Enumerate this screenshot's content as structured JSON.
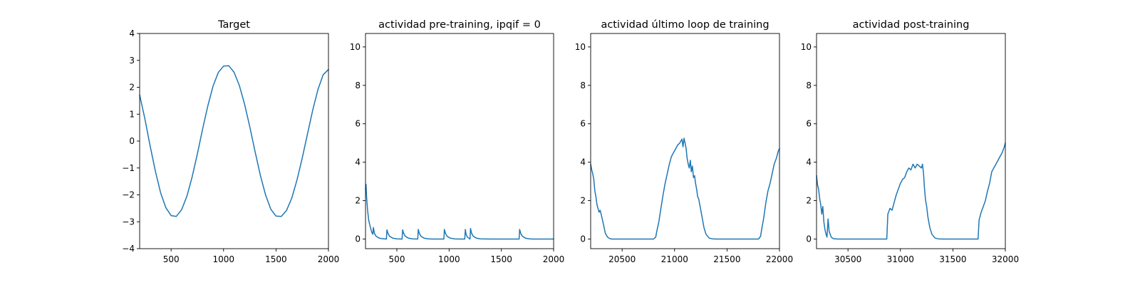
{
  "chart_data": [
    {
      "type": "line",
      "title": "Target",
      "xlim": [
        200,
        2000
      ],
      "ylim": [
        -4,
        4
      ],
      "xticks": [
        500,
        1000,
        1500,
        2000
      ],
      "yticks": [
        -4,
        -3,
        -2,
        -1,
        0,
        1,
        2,
        3,
        4
      ],
      "ytick_labels": [
        "−4",
        "−3",
        "−2",
        "−1",
        "0",
        "1",
        "2",
        "3",
        "4"
      ],
      "series": [
        {
          "x": [
            200,
            250,
            300,
            350,
            400,
            450,
            500,
            550,
            600,
            650,
            700,
            750,
            800,
            850,
            900,
            950,
            1000,
            1050,
            1100,
            1150,
            1200,
            1250,
            1300,
            1350,
            1400,
            1450,
            1500,
            1550,
            1600,
            1650,
            1700,
            1750,
            1800,
            1850,
            1900,
            1950,
            2000
          ],
          "y": [
            1.72,
            0.82,
            -0.18,
            -1.12,
            -1.92,
            -2.48,
            -2.77,
            -2.8,
            -2.55,
            -2.05,
            -1.34,
            -0.48,
            0.44,
            1.31,
            2.05,
            2.55,
            2.79,
            2.8,
            2.56,
            2.07,
            1.38,
            0.53,
            -0.38,
            -1.26,
            -2.0,
            -2.53,
            -2.79,
            -2.8,
            -2.58,
            -2.12,
            -1.45,
            -0.63,
            0.27,
            1.15,
            1.92,
            2.47,
            2.66
          ]
        }
      ]
    },
    {
      "type": "line",
      "title": "actividad pre-training, ipqif = 0",
      "xlim": [
        200,
        2000
      ],
      "ylim": [
        -0.5,
        10.7
      ],
      "xticks": [
        500,
        1000,
        1500,
        2000
      ],
      "yticks": [
        0,
        2,
        4,
        6,
        8,
        10
      ],
      "ytick_labels": [
        "0",
        "2",
        "4",
        "6",
        "8",
        "10"
      ],
      "series": [
        {
          "x": [
            200,
            205,
            210,
            220,
            230,
            240,
            250,
            260,
            270,
            275,
            285,
            300,
            330,
            360,
            400,
            405,
            415,
            430,
            460,
            500,
            550,
            555,
            565,
            580,
            610,
            650,
            700,
            705,
            715,
            730,
            760,
            800,
            850,
            900,
            950,
            955,
            965,
            980,
            1010,
            1050,
            1100,
            1150,
            1155,
            1162,
            1175,
            1200,
            1205,
            1215,
            1230,
            1260,
            1300,
            1400,
            1500,
            1600,
            1670,
            1675,
            1685,
            1700,
            1730,
            1770,
            1800,
            1900,
            2000
          ],
          "y": [
            2.6,
            2.85,
            2.2,
            1.5,
            1.0,
            0.75,
            0.55,
            0.35,
            0.25,
            0.6,
            0.3,
            0.15,
            0.05,
            0.02,
            0.0,
            0.48,
            0.3,
            0.15,
            0.05,
            0.01,
            0.0,
            0.48,
            0.3,
            0.15,
            0.05,
            0.01,
            0.0,
            0.5,
            0.3,
            0.15,
            0.05,
            0.01,
            0.0,
            0.0,
            0.0,
            0.5,
            0.3,
            0.15,
            0.05,
            0.01,
            0.0,
            0.0,
            0.5,
            0.25,
            0.1,
            0.0,
            0.55,
            0.3,
            0.15,
            0.05,
            0.01,
            0.0,
            0.0,
            0.0,
            0.0,
            0.5,
            0.3,
            0.15,
            0.05,
            0.01,
            0.0,
            0.0,
            0.0
          ]
        }
      ]
    },
    {
      "type": "line",
      "title": "actividad último loop de training",
      "xlim": [
        20200,
        22000
      ],
      "ylim": [
        -0.5,
        10.7
      ],
      "xticks": [
        20500,
        21000,
        21500,
        22000
      ],
      "yticks": [
        0,
        2,
        4,
        6,
        8,
        10
      ],
      "ytick_labels": [
        "0",
        "2",
        "4",
        "6",
        "8",
        "10"
      ],
      "series": [
        {
          "x": [
            20200,
            20210,
            20220,
            20230,
            20240,
            20250,
            20260,
            20270,
            20280,
            20290,
            20300,
            20320,
            20340,
            20360,
            20380,
            20400,
            20500,
            20600,
            20700,
            20800,
            20820,
            20830,
            20850,
            20870,
            20890,
            20910,
            20930,
            20950,
            20970,
            20990,
            21010,
            21030,
            21050,
            21070,
            21080,
            21090,
            21100,
            21110,
            21120,
            21130,
            21140,
            21150,
            21160,
            21170,
            21180,
            21190,
            21200,
            21210,
            21220,
            21230,
            21240,
            21260,
            21280,
            21300,
            21330,
            21360,
            21400,
            21500,
            21600,
            21700,
            21800,
            21820,
            21830,
            21850,
            21870,
            21890,
            21910,
            21930,
            21950,
            21970,
            21990,
            22000
          ],
          "y": [
            3.9,
            3.6,
            3.4,
            3.1,
            2.5,
            2.2,
            1.8,
            1.6,
            1.4,
            1.5,
            1.3,
            0.8,
            0.3,
            0.1,
            0.03,
            0.0,
            0.0,
            0.0,
            0.0,
            0.0,
            0.1,
            0.4,
            0.9,
            1.6,
            2.3,
            2.9,
            3.4,
            3.9,
            4.3,
            4.5,
            4.7,
            4.9,
            5.0,
            5.2,
            4.8,
            5.25,
            5.0,
            4.7,
            4.2,
            3.9,
            3.7,
            4.1,
            3.5,
            3.8,
            3.2,
            3.3,
            2.9,
            2.6,
            2.2,
            2.1,
            1.8,
            1.2,
            0.6,
            0.25,
            0.05,
            0.01,
            0.0,
            0.0,
            0.0,
            0.0,
            0.0,
            0.15,
            0.5,
            1.1,
            1.9,
            2.5,
            2.9,
            3.4,
            3.9,
            4.2,
            4.6,
            4.7
          ]
        }
      ]
    },
    {
      "type": "line",
      "title": "actividad post-training",
      "xlim": [
        30200,
        32000
      ],
      "ylim": [
        -0.5,
        10.7
      ],
      "xticks": [
        30500,
        31000,
        31500,
        32000
      ],
      "yticks": [
        0,
        2,
        4,
        6,
        8,
        10
      ],
      "ytick_labels": [
        "0",
        "2",
        "4",
        "6",
        "8",
        "10"
      ],
      "series": [
        {
          "x": [
            30200,
            30210,
            30220,
            30230,
            30240,
            30250,
            30260,
            30270,
            30280,
            30290,
            30300,
            30310,
            30320,
            30340,
            30360,
            30400,
            30500,
            30600,
            30700,
            30800,
            30870,
            30880,
            30900,
            30920,
            30940,
            30960,
            30980,
            31000,
            31020,
            31040,
            31060,
            31080,
            31100,
            31120,
            31140,
            31160,
            31180,
            31200,
            31210,
            31220,
            31230,
            31240,
            31250,
            31260,
            31280,
            31300,
            31330,
            31360,
            31400,
            31500,
            31600,
            31700,
            31740,
            31750,
            31770,
            31790,
            31810,
            31830,
            31850,
            31870,
            31890,
            31910,
            31930,
            31950,
            31970,
            31990,
            32000
          ],
          "y": [
            3.3,
            2.8,
            2.6,
            2.1,
            1.8,
            1.3,
            1.7,
            0.9,
            0.5,
            0.25,
            0.1,
            1.05,
            0.4,
            0.1,
            0.02,
            0.0,
            0.0,
            0.0,
            0.0,
            0.0,
            0.0,
            1.3,
            1.6,
            1.5,
            1.9,
            2.3,
            2.6,
            2.9,
            3.1,
            3.2,
            3.5,
            3.7,
            3.6,
            3.9,
            3.7,
            3.9,
            3.8,
            3.7,
            3.9,
            3.4,
            2.6,
            2.0,
            1.7,
            1.2,
            0.6,
            0.25,
            0.05,
            0.01,
            0.0,
            0.0,
            0.0,
            0.0,
            0.0,
            1.0,
            1.4,
            1.7,
            2.0,
            2.5,
            2.9,
            3.5,
            3.7,
            3.9,
            4.1,
            4.3,
            4.5,
            4.8,
            5.0
          ]
        }
      ]
    }
  ],
  "colors": {
    "line": "#1f77b4",
    "axes": "#000000",
    "background": "#ffffff"
  }
}
